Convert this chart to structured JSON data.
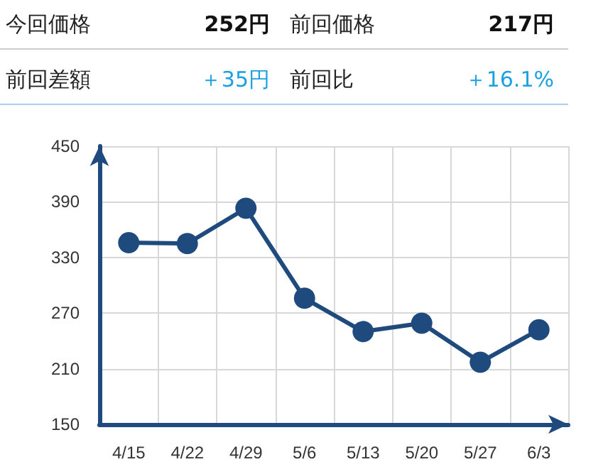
{
  "chart_data": {
    "type": "line",
    "annotations": [
      "今回価格",
      "252円",
      "前回価格",
      "217円",
      "前回差額",
      "＋35円",
      "前回比",
      "＋16.1%"
    ],
    "categories": [
      "4/15",
      "4/22",
      "4/29",
      "5/6",
      "5/13",
      "5/20",
      "5/27",
      "6/3"
    ],
    "series": [
      {
        "color": "#1f4a7e",
        "values": [
          346,
          345,
          383,
          286,
          250,
          259,
          217,
          252
        ]
      }
    ],
    "ylim": [
      150,
      450
    ],
    "yticks": [
      150,
      210,
      270,
      330,
      390,
      450
    ],
    "grid": true,
    "marker": "circle",
    "line_style": "solid"
  }
}
